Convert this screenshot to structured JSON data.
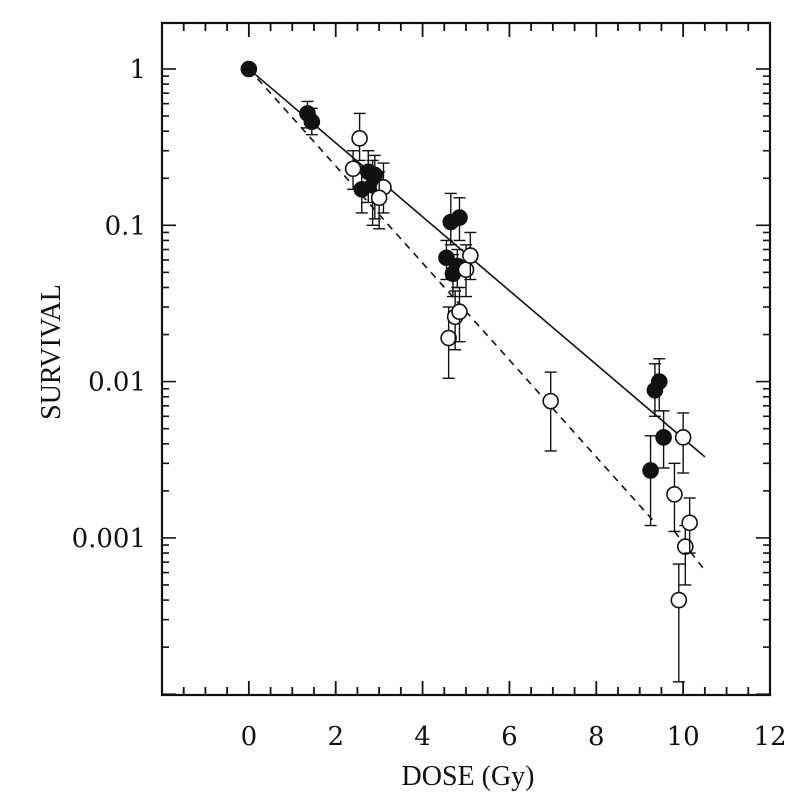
{
  "chart_data": {
    "type": "scatter",
    "title": "",
    "xlabel": "DOSE (Gy)",
    "ylabel": "SURVIVAL",
    "xlim": [
      -2,
      12
    ],
    "ylim": [
      0.0001,
      2
    ],
    "yscale": "log",
    "x_ticks": [
      0,
      2,
      4,
      6,
      8,
      10,
      12
    ],
    "x_tick_labels": [
      "0",
      "2",
      "4",
      "6",
      "8",
      "10",
      "12"
    ],
    "y_ticks": [
      1,
      0.1,
      0.01,
      0.001
    ],
    "y_tick_labels": [
      "1",
      "0.1",
      "0.01",
      "0.001"
    ],
    "grid": false,
    "series": [
      {
        "marker": "filled-circle",
        "points": [
          {
            "x": 0.0,
            "y": 1.0,
            "err_low": 1.0,
            "err_high": 1.0
          },
          {
            "x": 1.35,
            "y": 0.52,
            "err_low": 0.42,
            "err_high": 0.62
          },
          {
            "x": 1.45,
            "y": 0.46,
            "err_low": 0.38,
            "err_high": 0.56
          },
          {
            "x": 2.6,
            "y": 0.17,
            "err_low": 0.12,
            "err_high": 0.24
          },
          {
            "x": 2.75,
            "y": 0.22,
            "err_low": 0.14,
            "err_high": 0.3
          },
          {
            "x": 2.85,
            "y": 0.18,
            "err_low": 0.1,
            "err_high": 0.26
          },
          {
            "x": 2.9,
            "y": 0.21,
            "err_low": 0.11,
            "err_high": 0.28
          },
          {
            "x": 4.55,
            "y": 0.062,
            "err_low": 0.045,
            "err_high": 0.08
          },
          {
            "x": 4.65,
            "y": 0.105,
            "err_low": 0.075,
            "err_high": 0.16
          },
          {
            "x": 4.7,
            "y": 0.049,
            "err_low": 0.035,
            "err_high": 0.065
          },
          {
            "x": 4.85,
            "y": 0.112,
            "err_low": 0.08,
            "err_high": 0.15
          },
          {
            "x": 4.8,
            "y": 0.055,
            "err_low": 0.04,
            "err_high": 0.07
          },
          {
            "x": 9.25,
            "y": 0.0027,
            "err_low": 0.0012,
            "err_high": 0.0045
          },
          {
            "x": 9.35,
            "y": 0.0088,
            "err_low": 0.006,
            "err_high": 0.013
          },
          {
            "x": 9.45,
            "y": 0.01,
            "err_low": 0.0065,
            "err_high": 0.014
          },
          {
            "x": 9.55,
            "y": 0.0044,
            "err_low": 0.0028,
            "err_high": 0.0065
          }
        ]
      },
      {
        "marker": "open-circle",
        "points": [
          {
            "x": 2.4,
            "y": 0.23,
            "err_low": 0.17,
            "err_high": 0.3
          },
          {
            "x": 2.55,
            "y": 0.36,
            "err_low": 0.26,
            "err_high": 0.52
          },
          {
            "x": 3.1,
            "y": 0.175,
            "err_low": 0.12,
            "err_high": 0.25
          },
          {
            "x": 3.0,
            "y": 0.15,
            "err_low": 0.095,
            "err_high": 0.22
          },
          {
            "x": 4.6,
            "y": 0.019,
            "err_low": 0.0105,
            "err_high": 0.03
          },
          {
            "x": 4.75,
            "y": 0.026,
            "err_low": 0.016,
            "err_high": 0.038
          },
          {
            "x": 4.85,
            "y": 0.028,
            "err_low": 0.018,
            "err_high": 0.04
          },
          {
            "x": 5.0,
            "y": 0.052,
            "err_low": 0.035,
            "err_high": 0.075
          },
          {
            "x": 5.1,
            "y": 0.064,
            "err_low": 0.045,
            "err_high": 0.09
          },
          {
            "x": 6.95,
            "y": 0.0075,
            "err_low": 0.0036,
            "err_high": 0.0115
          },
          {
            "x": 9.8,
            "y": 0.0019,
            "err_low": 0.0011,
            "err_high": 0.003
          },
          {
            "x": 9.9,
            "y": 0.0004,
            "err_low": 0.00012,
            "err_high": 0.00068
          },
          {
            "x": 10.0,
            "y": 0.0044,
            "err_low": 0.0026,
            "err_high": 0.0063
          },
          {
            "x": 10.05,
            "y": 0.00088,
            "err_low": 0.0005,
            "err_high": 0.0012
          },
          {
            "x": 10.15,
            "y": 0.00125,
            "err_low": 0.0008,
            "err_high": 0.0018
          }
        ]
      }
    ],
    "fit_lines": [
      {
        "style": "solid",
        "x": [
          0,
          10.5
        ],
        "y": [
          1.0,
          0.0033
        ]
      },
      {
        "style": "dashed",
        "x": [
          0,
          9.3
        ],
        "y": [
          1.0,
          0.0013
        ]
      },
      {
        "style": "dashed",
        "x": [
          9.8,
          10.5
        ],
        "y": [
          0.0011,
          0.00062
        ]
      }
    ]
  }
}
